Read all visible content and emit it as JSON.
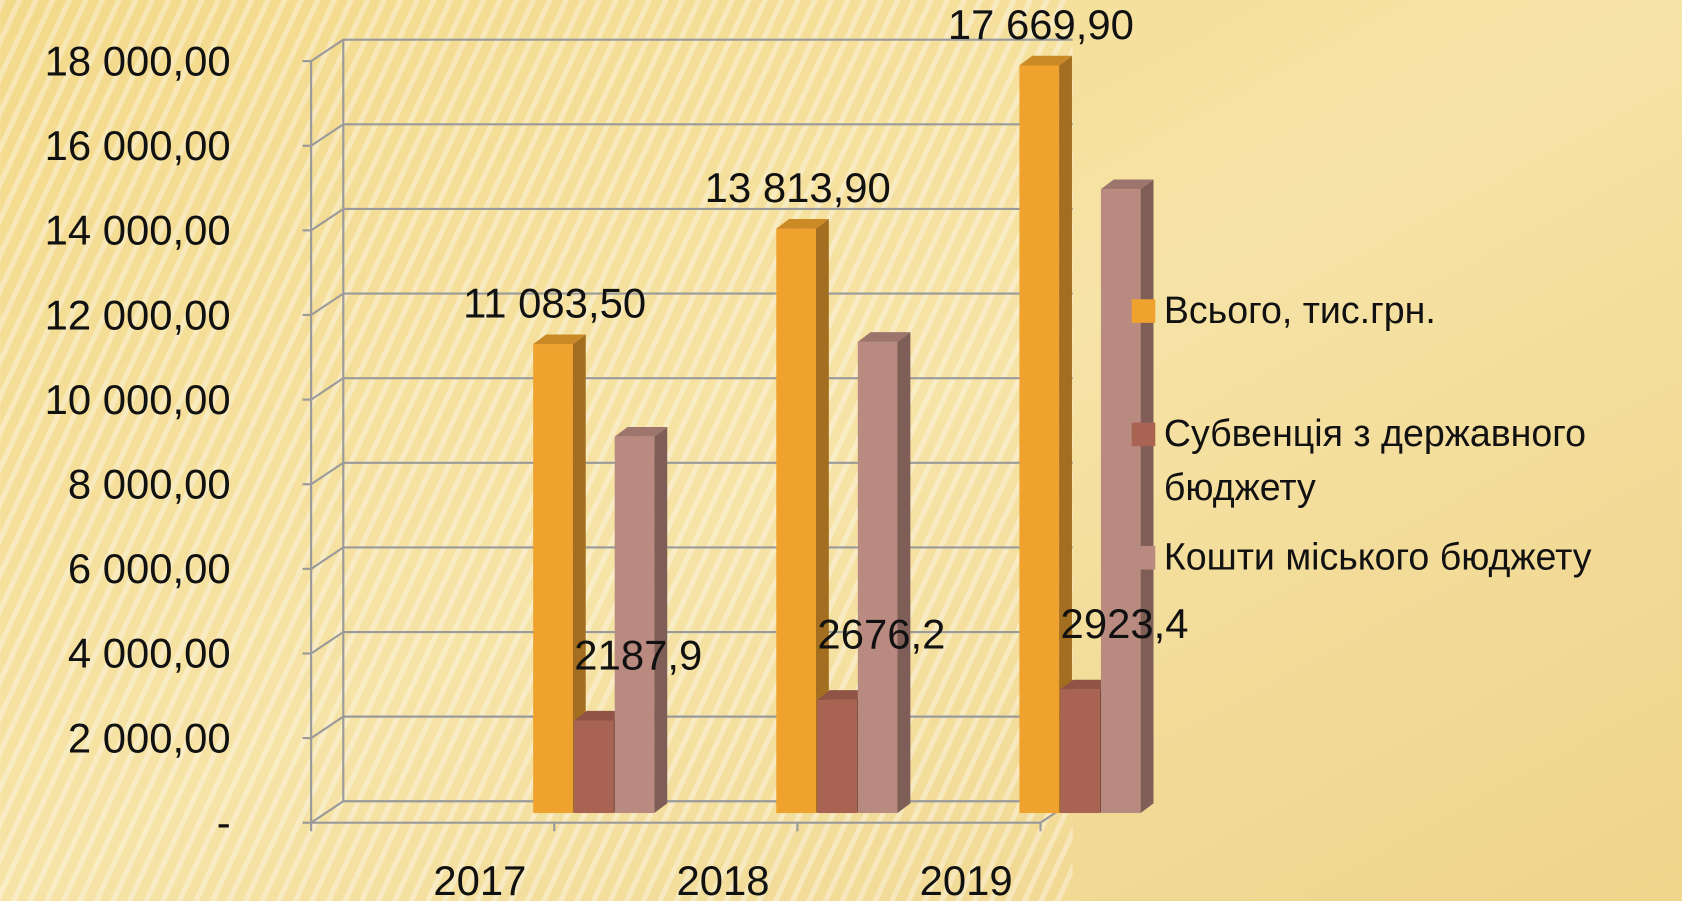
{
  "chart_data": {
    "type": "bar3d",
    "categories": [
      "2017",
      "2018",
      "2019"
    ],
    "series": [
      {
        "name": "Всього, тис.грн.",
        "color": "#f0a22e",
        "values": [
          11083.5,
          13813.9,
          17669.9
        ],
        "value_labels": [
          "11 083,50",
          "13 813,90",
          "17 669,90"
        ]
      },
      {
        "name": "Субвенція з державного бюджету",
        "color": "#a86352",
        "values": [
          2187.9,
          2676.2,
          2923.4
        ],
        "value_labels": [
          "2187,9",
          "2676,2",
          "2923,4"
        ]
      },
      {
        "name": "Кошти міського бюджету",
        "color": "#b98a80",
        "values": [
          8895.6,
          11137.7,
          14746.5
        ]
      }
    ],
    "ylim": [
      0,
      18000
    ],
    "yticks": [
      {
        "value": 0,
        "label": "-"
      },
      {
        "value": 2000,
        "label": "2 000,00"
      },
      {
        "value": 4000,
        "label": "4 000,00"
      },
      {
        "value": 6000,
        "label": "6 000,00"
      },
      {
        "value": 8000,
        "label": "8 000,00"
      },
      {
        "value": 10000,
        "label": "10 000,00"
      },
      {
        "value": 12000,
        "label": "12 000,00"
      },
      {
        "value": 14000,
        "label": "14 000,00"
      },
      {
        "value": 16000,
        "label": "16 000,00"
      },
      {
        "value": 18000,
        "label": "18 000,00"
      }
    ],
    "grid": true,
    "legend": "right"
  }
}
